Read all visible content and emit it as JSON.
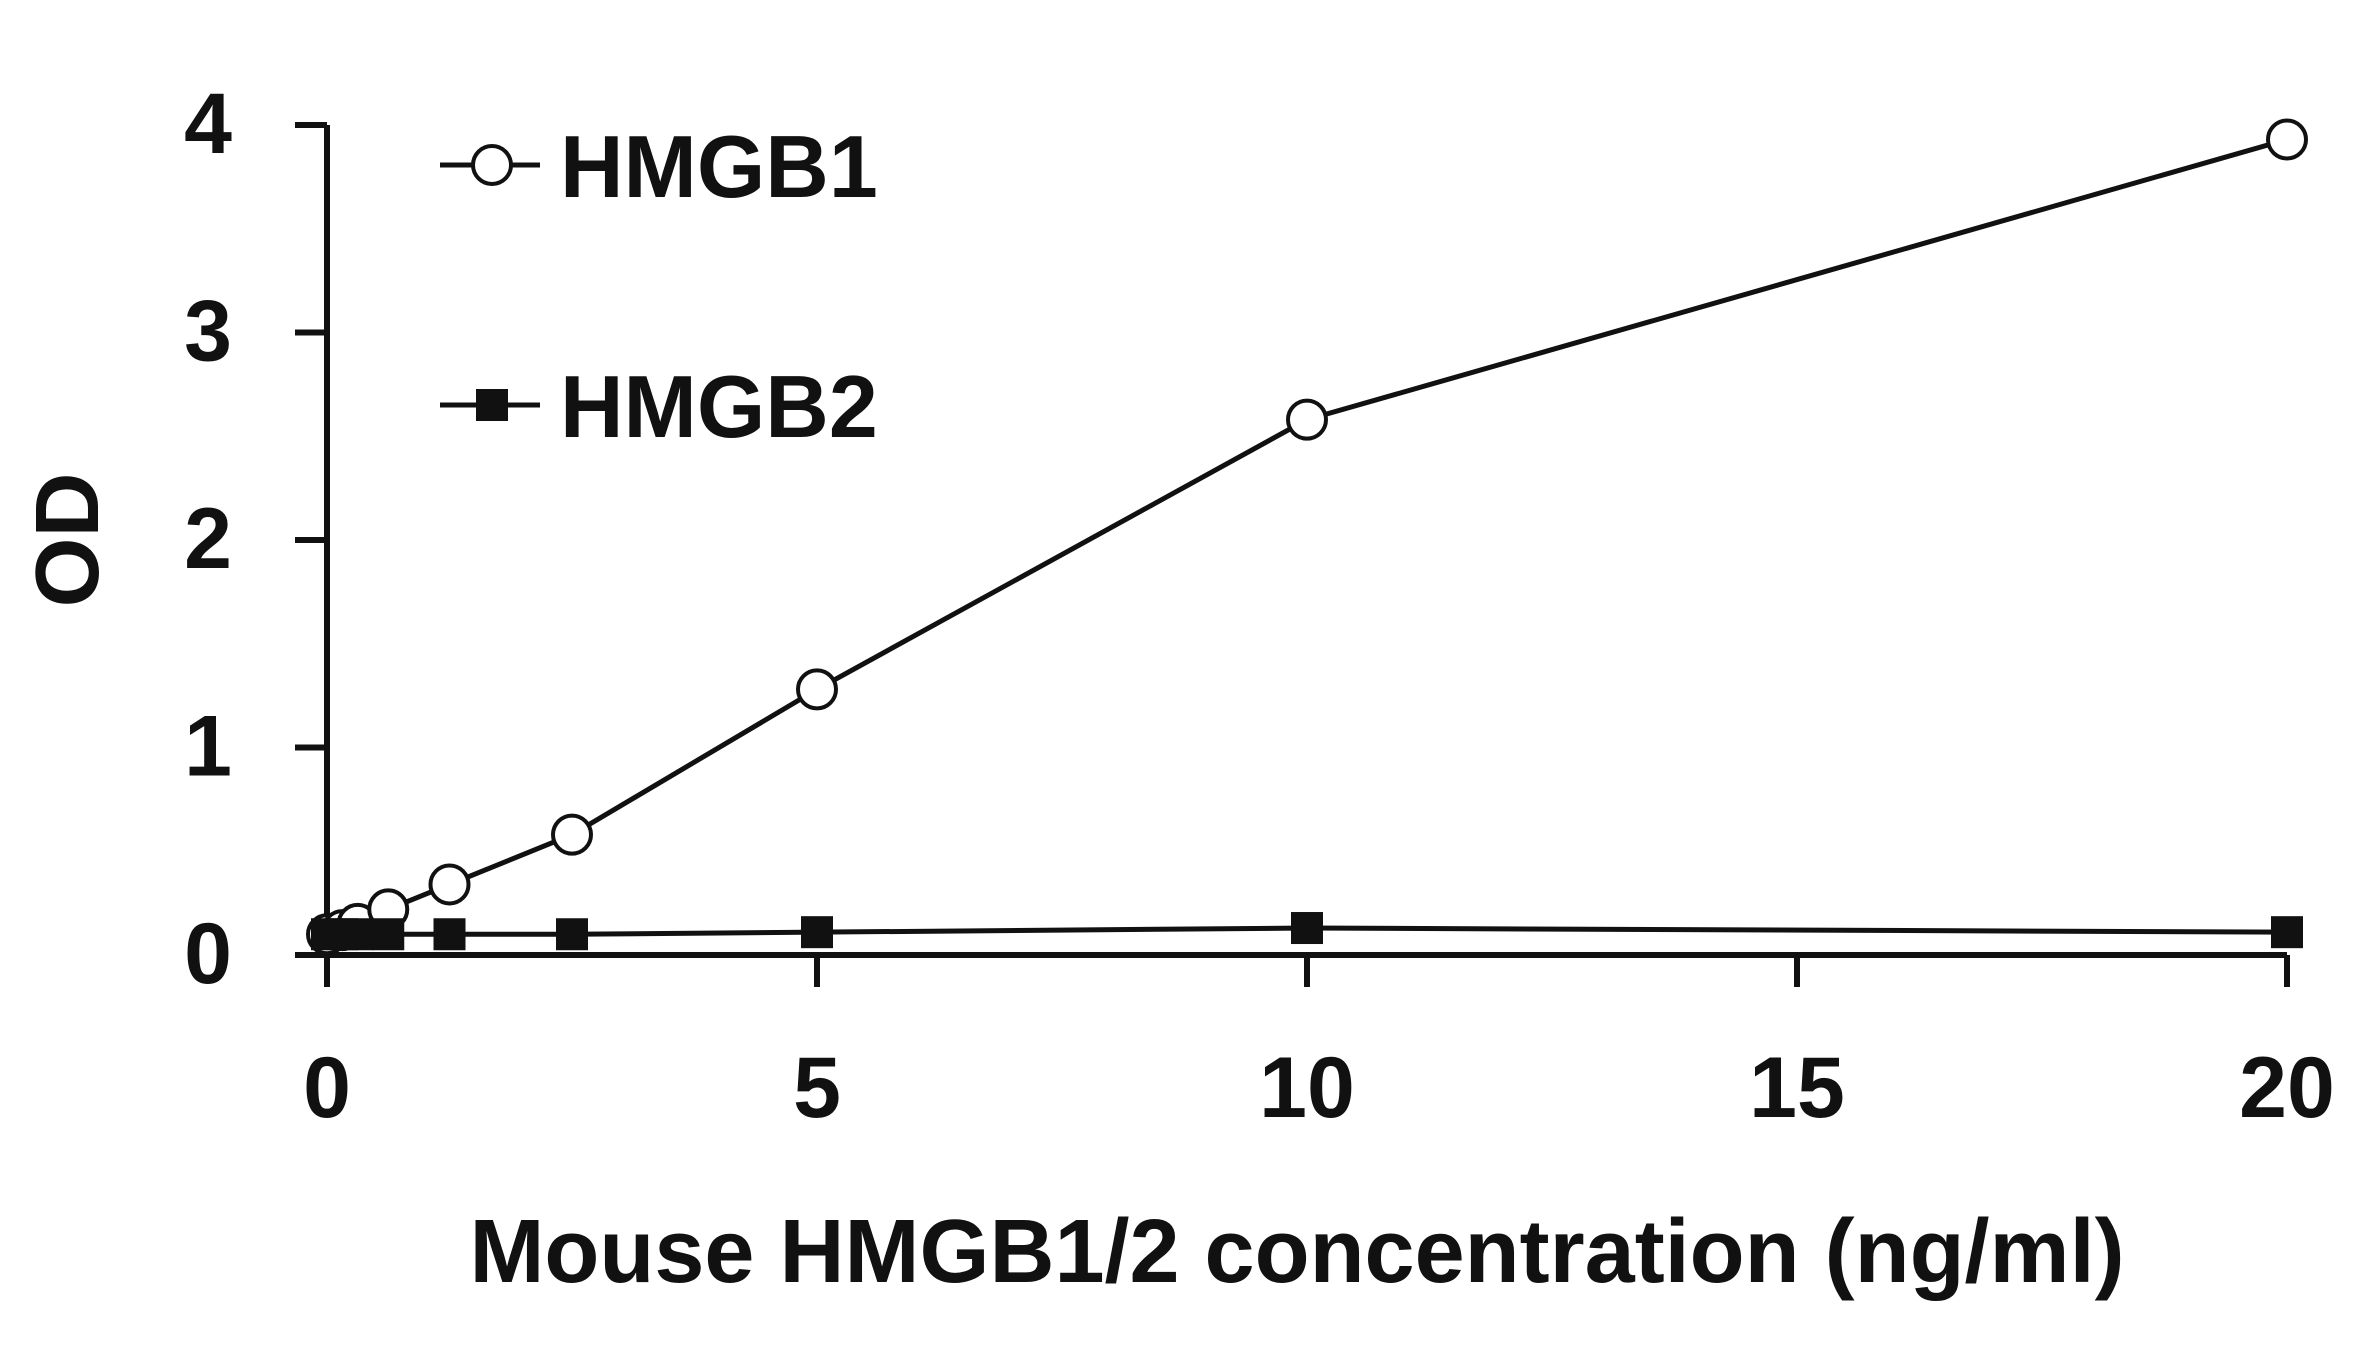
{
  "chart_data": {
    "type": "line",
    "xlabel": "Mouse HMGB1/2 concentration (ng/ml)",
    "ylabel": "OD",
    "xlim": [
      0,
      20
    ],
    "ylim": [
      0,
      4
    ],
    "xticks": [
      0,
      5,
      10,
      15,
      20
    ],
    "yticks": [
      0,
      1,
      2,
      3,
      4
    ],
    "xtick_labels": [
      "0",
      "5",
      "10",
      "15",
      "20"
    ],
    "ytick_labels": [
      "0",
      "1",
      "2",
      "3",
      "4"
    ],
    "grid": false,
    "legend_position": "top-left",
    "series": [
      {
        "name": "HMGB1",
        "marker": "open-circle",
        "color": "#111111",
        "x": [
          0,
          0.156,
          0.313,
          0.625,
          1.25,
          2.5,
          5,
          10,
          20
        ],
        "y": [
          0.1,
          0.12,
          0.15,
          0.22,
          0.34,
          0.58,
          1.28,
          2.58,
          3.93
        ]
      },
      {
        "name": "HMGB2",
        "marker": "filled-square",
        "color": "#111111",
        "x": [
          0,
          0.156,
          0.313,
          0.625,
          1.25,
          2.5,
          5,
          10,
          20
        ],
        "y": [
          0.1,
          0.1,
          0.1,
          0.1,
          0.1,
          0.1,
          0.11,
          0.13,
          0.11
        ]
      }
    ]
  }
}
